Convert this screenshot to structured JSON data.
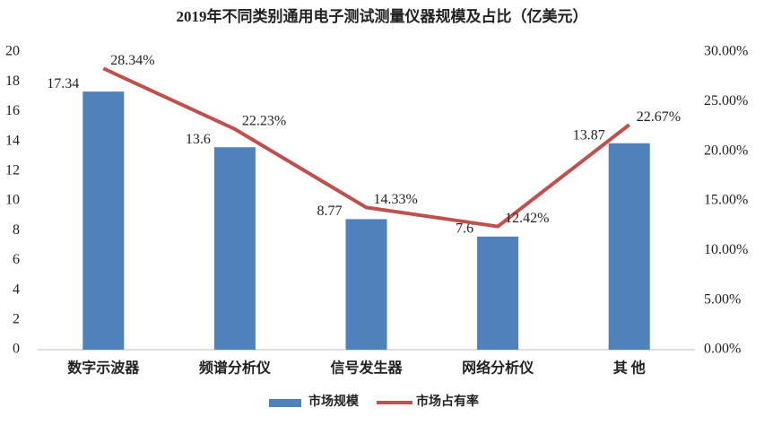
{
  "chart_data": {
    "type": "bar",
    "title": "2019年不同类别通用电子测试测量仪器规模及占比（亿美元）",
    "categories": [
      "数字示波器",
      "频谱分析仪",
      "信号发生器",
      "网络分析仪",
      "其 他"
    ],
    "series": [
      {
        "name": "市场规模",
        "type": "bar",
        "color": "#4f81bd",
        "values": [
          17.34,
          13.6,
          8.77,
          7.6,
          13.87
        ]
      },
      {
        "name": "市场占有率",
        "type": "line",
        "axis": "y2",
        "color": "#c0504d",
        "values": [
          28.34,
          22.23,
          14.33,
          12.42,
          22.67
        ],
        "value_labels": [
          "28.34%",
          "22.23%",
          "14.33%",
          "12.42%",
          "22.67%"
        ]
      }
    ],
    "ylim": [
      0,
      20
    ],
    "yticks": [
      0,
      2,
      4,
      6,
      8,
      10,
      12,
      14,
      16,
      18,
      20
    ],
    "y2lim": [
      0,
      30
    ],
    "y2ticks": [
      {
        "value": 0,
        "label": "0.00%"
      },
      {
        "value": 5,
        "label": "5.00%"
      },
      {
        "value": 10,
        "label": "10.00%"
      },
      {
        "value": 15,
        "label": "15.00%"
      },
      {
        "value": 20,
        "label": "20.00%"
      },
      {
        "value": 25,
        "label": "25.00%"
      },
      {
        "value": 30,
        "label": "30.00%"
      }
    ],
    "grid": false,
    "legend": "bottom"
  }
}
